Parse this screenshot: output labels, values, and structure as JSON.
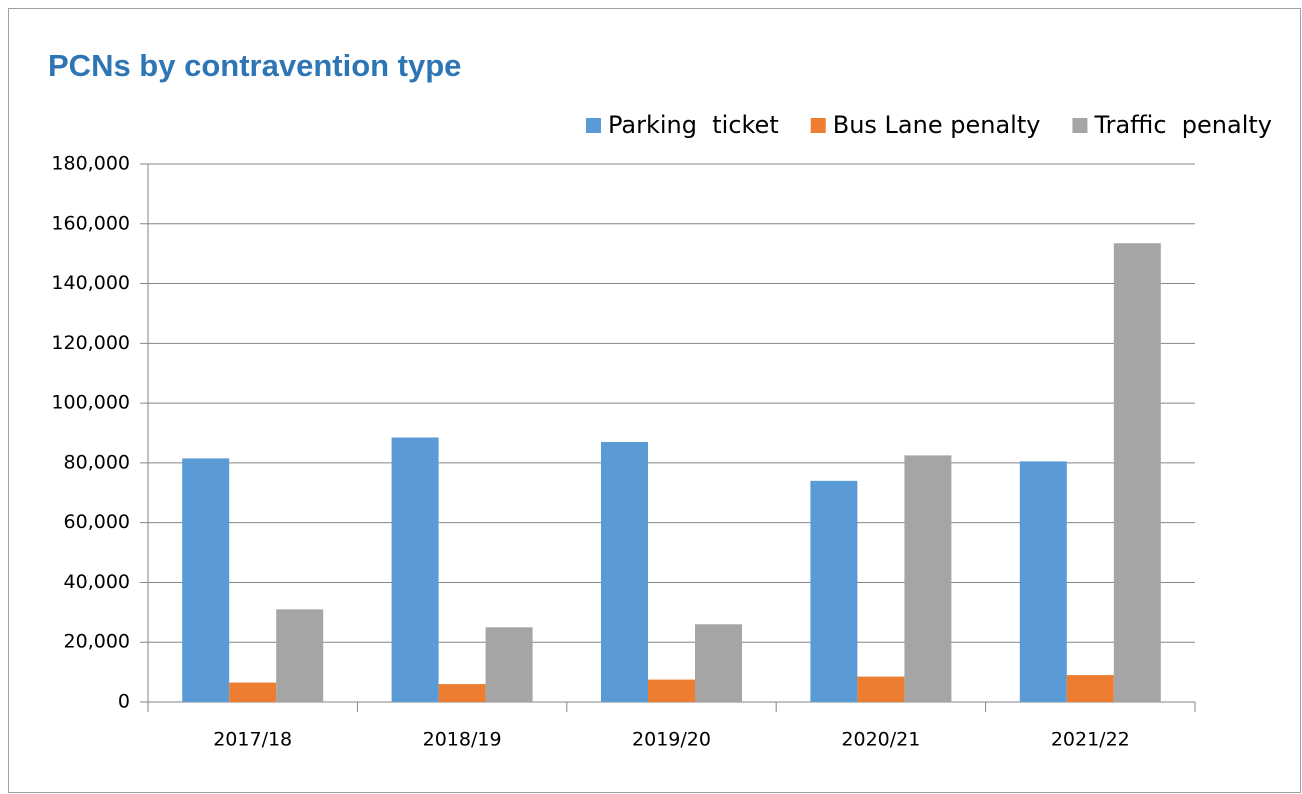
{
  "chart_data": {
    "type": "bar",
    "title": "PCNs by contravention type",
    "categories": [
      "2017/18",
      "2018/19",
      "2019/20",
      "2020/21",
      "2021/22"
    ],
    "series": [
      {
        "name": "Parking  ticket",
        "color": "#5b9bd5",
        "values": [
          81500,
          88500,
          87000,
          74000,
          80500
        ]
      },
      {
        "name": "Bus Lane penalty",
        "color": "#ed7d31",
        "values": [
          6500,
          6000,
          7500,
          8500,
          9000
        ]
      },
      {
        "name": "Traffic  penalty",
        "color": "#a5a5a5",
        "values": [
          31000,
          25000,
          26000,
          82500,
          153500
        ]
      }
    ],
    "ylim": [
      0,
      180000
    ],
    "yticks": [
      0,
      {
        "value": 20000,
        "label": "20,000"
      },
      {
        "value": 40000,
        "label": "40,000"
      },
      {
        "value": 60000,
        "label": "60,000"
      },
      {
        "value": 80000,
        "label": "80,000"
      },
      {
        "value": 100000,
        "label": "100,000"
      },
      {
        "value": 120000,
        "label": "120,000"
      },
      {
        "value": 140000,
        "label": "140,000"
      },
      {
        "value": 160000,
        "label": "160,000"
      },
      {
        "value": 180000,
        "label": "180,000"
      }
    ],
    "grid": true,
    "legend": "top-right"
  }
}
